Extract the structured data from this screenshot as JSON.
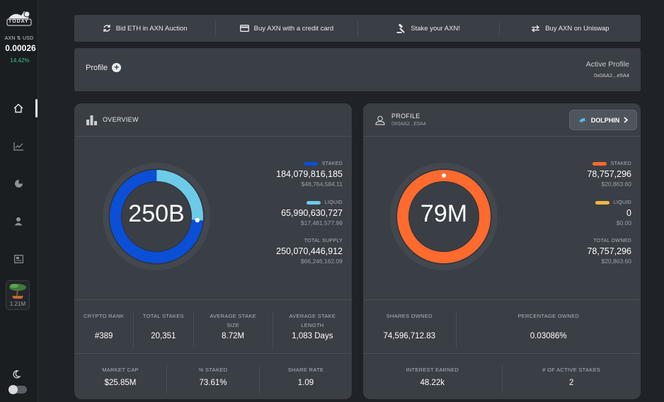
{
  "sidebar": {
    "logo_text": "TODAY",
    "price_label": "AXN ⇅ USD",
    "price_value": "0.00026",
    "price_change": "14.42%",
    "tree_value": "1.21M",
    "nav_icons": [
      "home-icon",
      "chart-line-icon",
      "pie-chart-icon",
      "user-icon",
      "id-card-icon"
    ]
  },
  "topbar": {
    "actions": [
      {
        "label": "Bid ETH in AXN Auction",
        "icon": "refresh-icon"
      },
      {
        "label": "Buy AXN with a credit card",
        "icon": "credit-card-icon"
      },
      {
        "label": "Stake your AXN!",
        "icon": "gavel-icon"
      },
      {
        "label": "Buy AXN on Uniswap",
        "icon": "swap-icon"
      }
    ]
  },
  "profilebar": {
    "profile_label": "Profile",
    "active_label": "Active Profile",
    "active_address": "0x0AA2...e5A4"
  },
  "overview": {
    "title": "OVERVIEW",
    "donut_label": "250B",
    "donut": {
      "staked": 184079816185,
      "liquid": 65990630727,
      "staked_color": "#0a4fd6",
      "liquid_color": "#6ccbe8"
    },
    "staked": {
      "tag": "STAKED",
      "amount": "184,079,816,185",
      "usd": "$48,764,584.11",
      "color": "#0a4fd6"
    },
    "liquid": {
      "tag": "LIQUID",
      "amount": "65,990,630,727",
      "usd": "$17,481,577.99",
      "color": "#6ccbe8"
    },
    "total": {
      "tag": "TOTAL SUPPLY",
      "amount": "250,070,446,912",
      "usd": "$66,246,162.09"
    },
    "metrics1": [
      {
        "label": "CRYPTO RANK",
        "value": "#389"
      },
      {
        "label": "TOTAL STAKES",
        "value": "20,351"
      },
      {
        "label": "AVERAGE STAKE SIZE",
        "value": "8.72M"
      },
      {
        "label": "AVERAGE STAKE LENGTH",
        "value": "1,083 Days"
      }
    ],
    "metrics2": [
      {
        "label": "MARKET CAP",
        "value": "$25.85M"
      },
      {
        "label": "% STAKED",
        "value": "73.61%"
      },
      {
        "label": "SHARE RATE",
        "value": "1.09"
      }
    ]
  },
  "profile": {
    "title": "PROFILE",
    "address": "0X0AA2...E5A4",
    "rank_button": "DOLPHIN",
    "donut_label": "79M",
    "donut": {
      "staked": 78757296,
      "liquid": 0,
      "staked_color": "#ff6a2f",
      "liquid_color": "#f2b544"
    },
    "staked": {
      "tag": "STAKED",
      "amount": "78,757,296",
      "usd": "$20,863.60",
      "color": "#ff6a2f"
    },
    "liquid": {
      "tag": "LIQUID",
      "amount": "0",
      "usd": "$0.00",
      "color": "#f2b544"
    },
    "total": {
      "tag": "TOTAL OWNED",
      "amount": "78,757,296",
      "usd": "$20,863.60"
    },
    "metrics1": [
      {
        "label": "SHARES OWNED",
        "value": "74,596,712.83"
      },
      {
        "label": "PERCENTAGE OWNED",
        "value": "0.03086%"
      }
    ],
    "metrics2": [
      {
        "label": "INTEREST EARNED",
        "value": "48.22k"
      },
      {
        "label": "# OF ACTIVE STAKES",
        "value": "2"
      }
    ]
  }
}
